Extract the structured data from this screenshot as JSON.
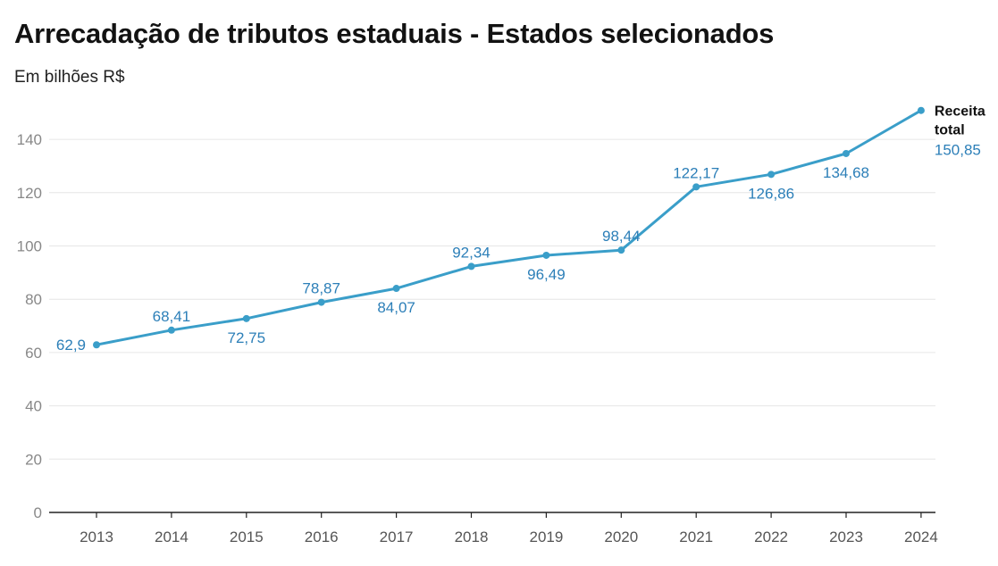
{
  "header": {
    "title": "Arrecadação de tributos estaduais - Estados selecionados",
    "subtitle": "Em bilhões R$"
  },
  "chart_data": {
    "type": "line",
    "title": "Arrecadação de tributos estaduais - Estados selecionados",
    "subtitle": "Em bilhões R$",
    "x": [
      "2013",
      "2014",
      "2015",
      "2016",
      "2017",
      "2018",
      "2019",
      "2020",
      "2021",
      "2022",
      "2023",
      "2024"
    ],
    "series": [
      {
        "name": "Receita total",
        "name_lines": [
          "Receita",
          "total"
        ],
        "values": [
          62.9,
          68.41,
          72.75,
          78.87,
          84.07,
          92.34,
          96.49,
          98.44,
          122.17,
          126.86,
          134.68,
          150.85
        ],
        "labels": [
          "62,9",
          "68,41",
          "72,75",
          "78,87",
          "84,07",
          "92,34",
          "96,49",
          "98,44",
          "122,17",
          "126,86",
          "134,68",
          "150,85"
        ],
        "color": "#3a9ec9"
      }
    ],
    "y_ticks": [
      0,
      20,
      40,
      60,
      80,
      100,
      120,
      140
    ],
    "ylim": [
      0,
      140
    ],
    "xlabel": "",
    "ylabel": "",
    "grid": true,
    "legend": "end-of-line label"
  },
  "colors": {
    "line": "#3a9ec9",
    "label": "#2c7fb8",
    "grid": "#e6e6e6",
    "axis": "#222222"
  }
}
